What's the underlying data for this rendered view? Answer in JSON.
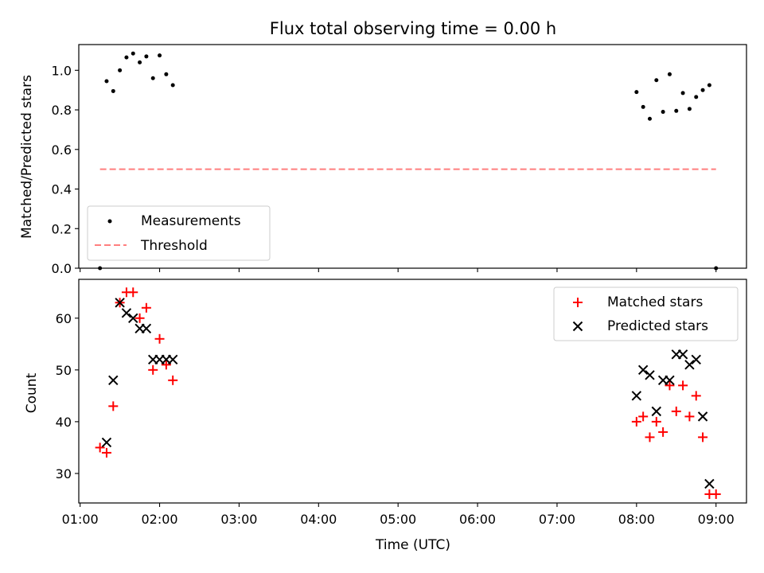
{
  "colors": {
    "measurement": "#000000",
    "threshold": "#ff7f7f",
    "matched": "#ff0000",
    "predicted": "#000000"
  },
  "chart_data": [
    {
      "type": "scatter",
      "title": "Flux total observing time = 0.00 h",
      "ylabel": "Matched/Predicted stars",
      "ylim": [
        0,
        1.13
      ],
      "xlim": [
        "00:59",
        "09:23"
      ],
      "yticks": [
        0.0,
        0.2,
        0.4,
        0.6,
        0.8,
        1.0
      ],
      "ytick_labels": [
        "0.0",
        "0.2",
        "0.4",
        "0.6",
        "0.8",
        "1.0"
      ],
      "legend_position": "lower-left",
      "series": [
        {
          "name": "Measurements",
          "kind": "dots",
          "x": [
            "01:15",
            "01:20",
            "01:25",
            "01:30",
            "01:35",
            "01:40",
            "01:45",
            "01:50",
            "01:55",
            "02:00",
            "02:05",
            "02:10",
            "08:00",
            "08:05",
            "08:10",
            "08:15",
            "08:20",
            "08:25",
            "08:30",
            "08:35",
            "08:40",
            "08:45",
            "08:50",
            "08:55",
            "09:00"
          ],
          "y": [
            0.0,
            0.945,
            0.895,
            1.0,
            1.065,
            1.085,
            1.04,
            1.07,
            0.96,
            1.075,
            0.98,
            0.925,
            0.89,
            0.815,
            0.755,
            0.95,
            0.79,
            0.98,
            0.795,
            0.885,
            0.805,
            0.865,
            0.9,
            0.925,
            0.0
          ]
        },
        {
          "name": "Threshold",
          "kind": "dashed-line",
          "x": [
            "01:15",
            "09:00"
          ],
          "y": [
            0.5,
            0.5
          ]
        }
      ]
    },
    {
      "type": "scatter",
      "ylabel": "Count",
      "xlabel": "Time (UTC)",
      "ylim": [
        24.3,
        67.5
      ],
      "xlim": [
        "00:59",
        "09:23"
      ],
      "yticks": [
        30,
        40,
        50,
        60
      ],
      "xticks": [
        "01:00",
        "02:00",
        "03:00",
        "04:00",
        "05:00",
        "06:00",
        "07:00",
        "08:00",
        "09:00"
      ],
      "legend_position": "upper-right",
      "series": [
        {
          "name": "Matched stars",
          "kind": "plus",
          "x": [
            "01:15",
            "01:20",
            "01:25",
            "01:30",
            "01:35",
            "01:40",
            "01:45",
            "01:50",
            "01:55",
            "02:00",
            "02:05",
            "02:10",
            "08:00",
            "08:05",
            "08:10",
            "08:15",
            "08:20",
            "08:25",
            "08:30",
            "08:35",
            "08:40",
            "08:45",
            "08:50",
            "08:55",
            "09:00"
          ],
          "y": [
            35,
            34,
            43,
            63,
            65,
            65,
            60,
            62,
            50,
            56,
            51,
            48,
            40,
            41,
            37,
            40,
            38,
            47,
            42,
            47,
            41,
            45,
            37,
            26,
            26
          ]
        },
        {
          "name": "Predicted stars",
          "kind": "cross",
          "x": [
            "01:20",
            "01:25",
            "01:30",
            "01:35",
            "01:40",
            "01:45",
            "01:50",
            "01:55",
            "02:00",
            "02:05",
            "02:10",
            "08:00",
            "08:05",
            "08:10",
            "08:15",
            "08:20",
            "08:25",
            "08:30",
            "08:35",
            "08:40",
            "08:45",
            "08:50",
            "08:55"
          ],
          "y": [
            36,
            48,
            63,
            61,
            60,
            58,
            58,
            52,
            52,
            52,
            52,
            45,
            50,
            49,
            42,
            48,
            48,
            53,
            53,
            51,
            52,
            41,
            28
          ]
        }
      ]
    }
  ]
}
